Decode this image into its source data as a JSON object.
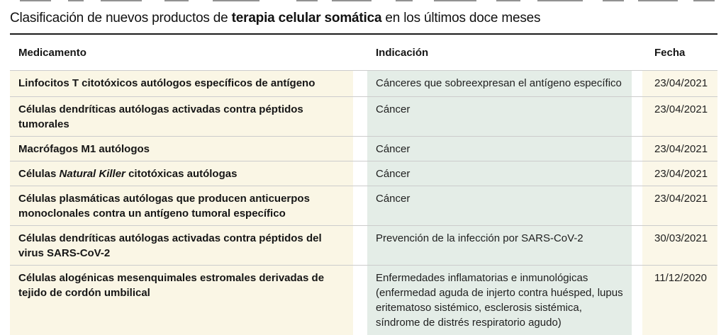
{
  "title_parts": {
    "prefix": "Clasificación de nuevos productos de ",
    "emphasis": "terapia celular somática",
    "suffix": " en los últimos doce meses"
  },
  "chart_data": {
    "type": "table",
    "title": "Clasificación de nuevos productos de terapia celular somática en los últimos doce meses",
    "columns": {
      "medication": "Medicamento",
      "indication": "Indicación",
      "date": "Fecha"
    },
    "rows": [
      {
        "medication_parts": [
          {
            "text": "Linfocitos T citotóxicos autólogos específicos de antígeno"
          }
        ],
        "indication": "Cánceres que sobreexpresan el antígeno específico",
        "date": "23/04/2021"
      },
      {
        "medication_parts": [
          {
            "text": "Células dendríticas autólogas activadas contra péptidos tumorales"
          }
        ],
        "indication": "Cáncer",
        "date": "23/04/2021"
      },
      {
        "medication_parts": [
          {
            "text": "Macrófagos M1 autólogos"
          }
        ],
        "indication": "Cáncer",
        "date": "23/04/2021"
      },
      {
        "medication_parts": [
          {
            "text": "Células "
          },
          {
            "text": "Natural Killer",
            "italic": true
          },
          {
            "text": " citotóxicas autólogas"
          }
        ],
        "indication": "Cáncer",
        "date": "23/04/2021"
      },
      {
        "medication_parts": [
          {
            "text": "Células plasmáticas autólogas que producen anticuerpos monoclonales contra un antígeno tumoral específico"
          }
        ],
        "indication": "Cáncer",
        "date": "23/04/2021"
      },
      {
        "medication_parts": [
          {
            "text": "Células dendríticas autólogas activadas contra péptidos del virus SARS-CoV-2"
          }
        ],
        "indication": "Prevención de la infección por SARS-CoV-2",
        "date": "30/03/2021"
      },
      {
        "medication_parts": [
          {
            "text": "Células alogénicas mesenquimales estromales derivadas de tejido de cordón umbilical"
          }
        ],
        "indication": "Enfermedades inflamatorias e inmunológicas (enfermedad aguda de injerto contra huésped, lupus eritematoso sistémico, esclerosis sistémica, síndrome de distrés respiratorio agudo)",
        "date": "11/12/2020"
      }
    ]
  },
  "colors": {
    "medication_bg": "#faf6e5",
    "indication_bg": "#e4ede7",
    "date_bg": "#fbf7e8",
    "row_divider": "#cccccc",
    "title_rule": "#1c1c1c"
  }
}
